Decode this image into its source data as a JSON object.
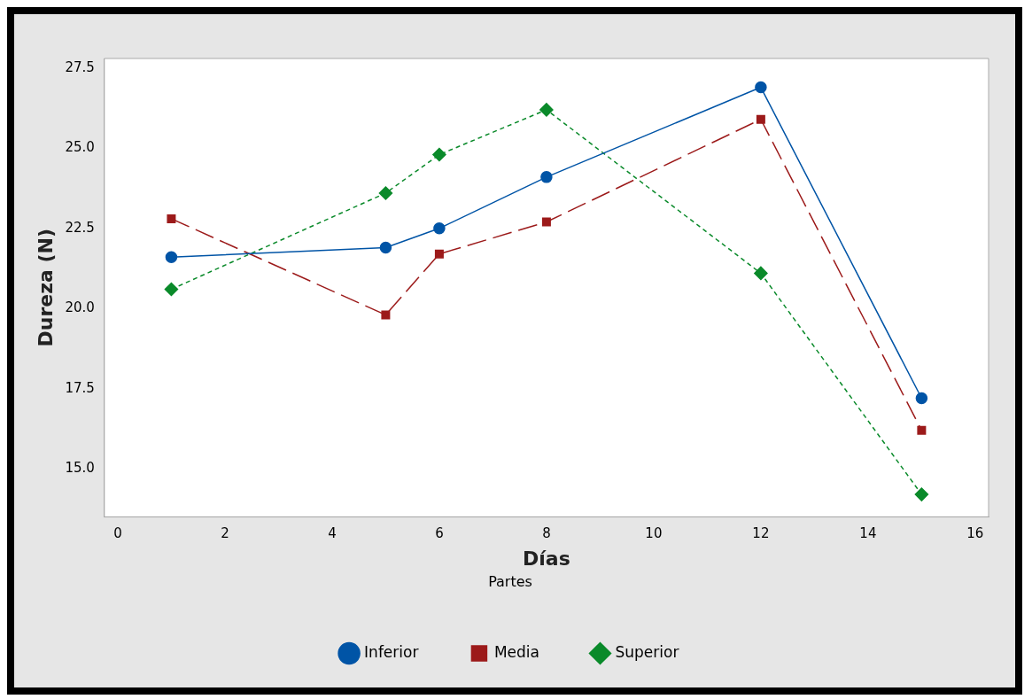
{
  "chart_data": {
    "type": "line",
    "xlabel": "Días",
    "ylabel": "Dureza (N)",
    "legend_title": "Partes",
    "legend": "bottom",
    "xlim": [
      -0.25,
      16.25
    ],
    "xticks": [
      0,
      2,
      4,
      6,
      8,
      10,
      12,
      14,
      16
    ],
    "ylim": [
      13.5,
      27.8
    ],
    "yticks": [
      {
        "value": 15,
        "label": "15.0"
      },
      {
        "value": 17.5,
        "label": "17.5"
      },
      {
        "value": 20,
        "label": "20.0"
      },
      {
        "value": 22.5,
        "label": "22.5"
      },
      {
        "value": 25,
        "label": "25.0"
      },
      {
        "value": 27.5,
        "label": "27.5"
      }
    ],
    "grid": false,
    "x": [
      1,
      5,
      6,
      8,
      12,
      15
    ],
    "series": [
      {
        "name": "Inferior",
        "color": "#0054a6",
        "marker": "circle",
        "line_style": "solid",
        "values": [
          21.6,
          21.9,
          22.5,
          24.1,
          26.9,
          17.2
        ]
      },
      {
        "name": "Media",
        "color": "#9c1a1a",
        "marker": "square",
        "line_style": "dashed",
        "values": [
          22.8,
          19.8,
          21.7,
          22.7,
          25.9,
          16.2
        ]
      },
      {
        "name": "Superior",
        "color": "#0a8a2a",
        "marker": "diamond",
        "line_style": "dotted",
        "values": [
          20.6,
          23.6,
          24.8,
          26.2,
          21.1,
          14.2
        ]
      }
    ]
  }
}
